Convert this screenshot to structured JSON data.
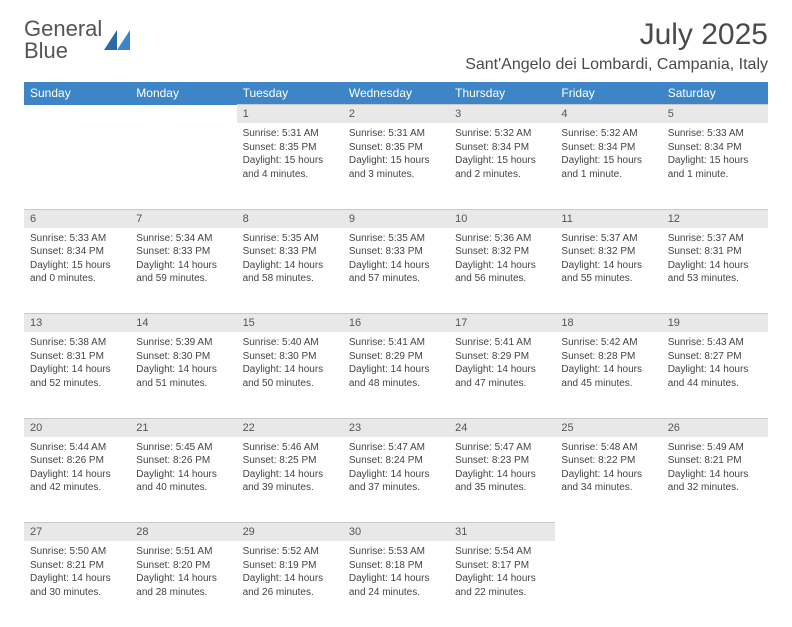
{
  "brand": {
    "line1": "General",
    "line2": "Blue"
  },
  "title": "July 2025",
  "location": "Sant'Angelo dei Lombardi, Campania, Italy",
  "colors": {
    "header_bg": "#3d85c6",
    "header_text": "#ffffff",
    "daynum_bg": "#e8e8e8",
    "body_text": "#444444",
    "page_bg": "#ffffff",
    "logo_blue": "#3d85c6",
    "logo_gray": "#555555"
  },
  "typography": {
    "title_fontsize": 30,
    "location_fontsize": 16,
    "weekday_fontsize": 12,
    "daynum_fontsize": 11,
    "cell_fontsize": 10
  },
  "weekdays": [
    "Sunday",
    "Monday",
    "Tuesday",
    "Wednesday",
    "Thursday",
    "Friday",
    "Saturday"
  ],
  "weeks": [
    {
      "nums": [
        "",
        "",
        "1",
        "2",
        "3",
        "4",
        "5"
      ],
      "cells": [
        null,
        null,
        {
          "sunrise": "Sunrise: 5:31 AM",
          "sunset": "Sunset: 8:35 PM",
          "day1": "Daylight: 15 hours",
          "day2": "and 4 minutes."
        },
        {
          "sunrise": "Sunrise: 5:31 AM",
          "sunset": "Sunset: 8:35 PM",
          "day1": "Daylight: 15 hours",
          "day2": "and 3 minutes."
        },
        {
          "sunrise": "Sunrise: 5:32 AM",
          "sunset": "Sunset: 8:34 PM",
          "day1": "Daylight: 15 hours",
          "day2": "and 2 minutes."
        },
        {
          "sunrise": "Sunrise: 5:32 AM",
          "sunset": "Sunset: 8:34 PM",
          "day1": "Daylight: 15 hours",
          "day2": "and 1 minute."
        },
        {
          "sunrise": "Sunrise: 5:33 AM",
          "sunset": "Sunset: 8:34 PM",
          "day1": "Daylight: 15 hours",
          "day2": "and 1 minute."
        }
      ]
    },
    {
      "nums": [
        "6",
        "7",
        "8",
        "9",
        "10",
        "11",
        "12"
      ],
      "cells": [
        {
          "sunrise": "Sunrise: 5:33 AM",
          "sunset": "Sunset: 8:34 PM",
          "day1": "Daylight: 15 hours",
          "day2": "and 0 minutes."
        },
        {
          "sunrise": "Sunrise: 5:34 AM",
          "sunset": "Sunset: 8:33 PM",
          "day1": "Daylight: 14 hours",
          "day2": "and 59 minutes."
        },
        {
          "sunrise": "Sunrise: 5:35 AM",
          "sunset": "Sunset: 8:33 PM",
          "day1": "Daylight: 14 hours",
          "day2": "and 58 minutes."
        },
        {
          "sunrise": "Sunrise: 5:35 AM",
          "sunset": "Sunset: 8:33 PM",
          "day1": "Daylight: 14 hours",
          "day2": "and 57 minutes."
        },
        {
          "sunrise": "Sunrise: 5:36 AM",
          "sunset": "Sunset: 8:32 PM",
          "day1": "Daylight: 14 hours",
          "day2": "and 56 minutes."
        },
        {
          "sunrise": "Sunrise: 5:37 AM",
          "sunset": "Sunset: 8:32 PM",
          "day1": "Daylight: 14 hours",
          "day2": "and 55 minutes."
        },
        {
          "sunrise": "Sunrise: 5:37 AM",
          "sunset": "Sunset: 8:31 PM",
          "day1": "Daylight: 14 hours",
          "day2": "and 53 minutes."
        }
      ]
    },
    {
      "nums": [
        "13",
        "14",
        "15",
        "16",
        "17",
        "18",
        "19"
      ],
      "cells": [
        {
          "sunrise": "Sunrise: 5:38 AM",
          "sunset": "Sunset: 8:31 PM",
          "day1": "Daylight: 14 hours",
          "day2": "and 52 minutes."
        },
        {
          "sunrise": "Sunrise: 5:39 AM",
          "sunset": "Sunset: 8:30 PM",
          "day1": "Daylight: 14 hours",
          "day2": "and 51 minutes."
        },
        {
          "sunrise": "Sunrise: 5:40 AM",
          "sunset": "Sunset: 8:30 PM",
          "day1": "Daylight: 14 hours",
          "day2": "and 50 minutes."
        },
        {
          "sunrise": "Sunrise: 5:41 AM",
          "sunset": "Sunset: 8:29 PM",
          "day1": "Daylight: 14 hours",
          "day2": "and 48 minutes."
        },
        {
          "sunrise": "Sunrise: 5:41 AM",
          "sunset": "Sunset: 8:29 PM",
          "day1": "Daylight: 14 hours",
          "day2": "and 47 minutes."
        },
        {
          "sunrise": "Sunrise: 5:42 AM",
          "sunset": "Sunset: 8:28 PM",
          "day1": "Daylight: 14 hours",
          "day2": "and 45 minutes."
        },
        {
          "sunrise": "Sunrise: 5:43 AM",
          "sunset": "Sunset: 8:27 PM",
          "day1": "Daylight: 14 hours",
          "day2": "and 44 minutes."
        }
      ]
    },
    {
      "nums": [
        "20",
        "21",
        "22",
        "23",
        "24",
        "25",
        "26"
      ],
      "cells": [
        {
          "sunrise": "Sunrise: 5:44 AM",
          "sunset": "Sunset: 8:26 PM",
          "day1": "Daylight: 14 hours",
          "day2": "and 42 minutes."
        },
        {
          "sunrise": "Sunrise: 5:45 AM",
          "sunset": "Sunset: 8:26 PM",
          "day1": "Daylight: 14 hours",
          "day2": "and 40 minutes."
        },
        {
          "sunrise": "Sunrise: 5:46 AM",
          "sunset": "Sunset: 8:25 PM",
          "day1": "Daylight: 14 hours",
          "day2": "and 39 minutes."
        },
        {
          "sunrise": "Sunrise: 5:47 AM",
          "sunset": "Sunset: 8:24 PM",
          "day1": "Daylight: 14 hours",
          "day2": "and 37 minutes."
        },
        {
          "sunrise": "Sunrise: 5:47 AM",
          "sunset": "Sunset: 8:23 PM",
          "day1": "Daylight: 14 hours",
          "day2": "and 35 minutes."
        },
        {
          "sunrise": "Sunrise: 5:48 AM",
          "sunset": "Sunset: 8:22 PM",
          "day1": "Daylight: 14 hours",
          "day2": "and 34 minutes."
        },
        {
          "sunrise": "Sunrise: 5:49 AM",
          "sunset": "Sunset: 8:21 PM",
          "day1": "Daylight: 14 hours",
          "day2": "and 32 minutes."
        }
      ]
    },
    {
      "nums": [
        "27",
        "28",
        "29",
        "30",
        "31",
        "",
        ""
      ],
      "cells": [
        {
          "sunrise": "Sunrise: 5:50 AM",
          "sunset": "Sunset: 8:21 PM",
          "day1": "Daylight: 14 hours",
          "day2": "and 30 minutes."
        },
        {
          "sunrise": "Sunrise: 5:51 AM",
          "sunset": "Sunset: 8:20 PM",
          "day1": "Daylight: 14 hours",
          "day2": "and 28 minutes."
        },
        {
          "sunrise": "Sunrise: 5:52 AM",
          "sunset": "Sunset: 8:19 PM",
          "day1": "Daylight: 14 hours",
          "day2": "and 26 minutes."
        },
        {
          "sunrise": "Sunrise: 5:53 AM",
          "sunset": "Sunset: 8:18 PM",
          "day1": "Daylight: 14 hours",
          "day2": "and 24 minutes."
        },
        {
          "sunrise": "Sunrise: 5:54 AM",
          "sunset": "Sunset: 8:17 PM",
          "day1": "Daylight: 14 hours",
          "day2": "and 22 minutes."
        },
        null,
        null
      ]
    }
  ]
}
